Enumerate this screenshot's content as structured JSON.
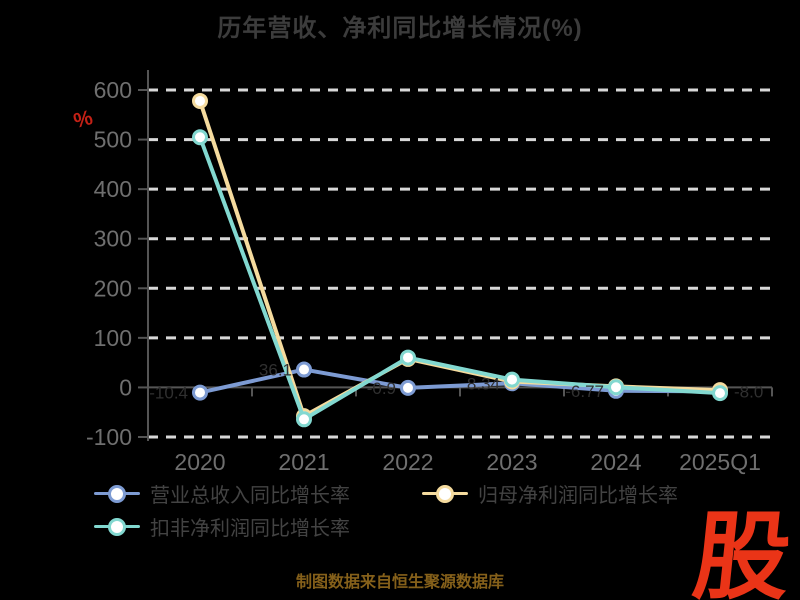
{
  "chart_data": {
    "type": "line",
    "title": "历年营收、净利同比增长情况(%)",
    "ylabel": "%",
    "xlabel": "",
    "categories": [
      "2020",
      "2021",
      "2022",
      "2023",
      "2024",
      "2025Q1"
    ],
    "yticks": [
      600,
      500,
      400,
      300,
      200,
      100,
      0,
      -100
    ],
    "ylim": [
      -100,
      600
    ],
    "grid": "horizontal-dashed",
    "legend_position": "bottom-left",
    "series": [
      {
        "name": "营业总收入同比增长率",
        "color": "#7d9bd3",
        "values": [
          -10.4,
          36.1,
          -0.9,
          8.34,
          -6.77,
          -8.0
        ],
        "labels": [
          "-10.4",
          "36.1",
          "-0.9",
          "8.34",
          "-6.77",
          "-8.0"
        ]
      },
      {
        "name": "归母净利润同比增长率",
        "color": "#f5db9e",
        "values": [
          577.9,
          -57.9,
          57.5,
          12.0,
          2.1,
          -5.5
        ],
        "labels": [
          "",
          "",
          "",
          "",
          "",
          ""
        ]
      },
      {
        "name": "扣非净利润同比增长率",
        "color": "#82d8d0",
        "values": [
          504.7,
          -64.3,
          60.2,
          15.8,
          0.4,
          -11.5
        ],
        "labels": [
          "",
          "",
          "",
          "",
          "",
          ""
        ]
      }
    ]
  },
  "footer": {
    "text": "制图数据来自恒生聚源数据库"
  },
  "logo": {
    "text": "股"
  },
  "colors": {
    "background": "#000000",
    "title": "#3c3c3c",
    "tick_label": "#6f6f6f",
    "gridline": "#d8d8d8",
    "axis": "#555555",
    "legend_label": "#434343",
    "unit_label": "#c42116",
    "point_label": "#303030",
    "footer": "#85601a",
    "logo": "#ea3417"
  }
}
